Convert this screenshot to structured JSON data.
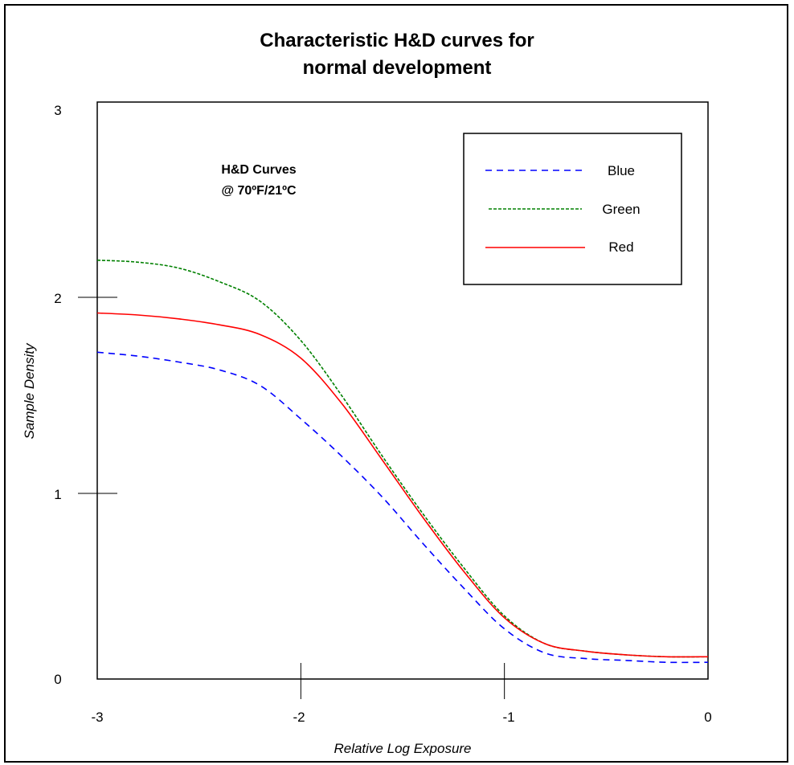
{
  "chart_data": {
    "type": "line",
    "title": [
      "Characteristic H&D curves for",
      "normal development"
    ],
    "xlabel": "Relative Log Exposure",
    "ylabel": "Sample Density",
    "xlim": [
      -3,
      0
    ],
    "ylim": [
      0,
      3
    ],
    "x_ticks": [
      "-3",
      "-2",
      "-1",
      "0"
    ],
    "y_ticks": [
      "0",
      "1",
      "2",
      "3"
    ],
    "annotation": [
      "H&D Curves",
      "@ 70ºF/21ºC"
    ],
    "legend_position": "top-right",
    "grid": false,
    "series": [
      {
        "name": "Blue",
        "color": "#0000ff",
        "dash": "dashed",
        "x": [
          -3.0,
          -2.8,
          -2.6,
          -2.4,
          -2.2,
          -2.0,
          -1.8,
          -1.6,
          -1.4,
          -1.2,
          -1.0,
          -0.8,
          -0.6,
          -0.4,
          -0.2,
          0.0
        ],
        "y": [
          1.72,
          1.7,
          1.67,
          1.63,
          1.55,
          1.38,
          1.19,
          0.98,
          0.73,
          0.49,
          0.27,
          0.14,
          0.11,
          0.1,
          0.09,
          0.09
        ]
      },
      {
        "name": "Green",
        "color": "#008000",
        "dash": "dotted",
        "x": [
          -3.0,
          -2.8,
          -2.6,
          -2.4,
          -2.2,
          -2.0,
          -1.8,
          -1.6,
          -1.4,
          -1.2,
          -1.0,
          -0.8,
          -0.6,
          -0.4,
          -0.2,
          0.0
        ],
        "y": [
          2.19,
          2.18,
          2.15,
          2.08,
          1.98,
          1.78,
          1.5,
          1.19,
          0.89,
          0.6,
          0.34,
          0.19,
          0.15,
          0.13,
          0.12,
          0.12
        ]
      },
      {
        "name": "Red",
        "color": "#ff0000",
        "dash": "solid",
        "x": [
          -3.0,
          -2.8,
          -2.6,
          -2.4,
          -2.2,
          -2.0,
          -1.8,
          -1.6,
          -1.4,
          -1.2,
          -1.0,
          -0.8,
          -0.6,
          -0.4,
          -0.2,
          0.0
        ],
        "y": [
          1.92,
          1.91,
          1.89,
          1.86,
          1.81,
          1.69,
          1.46,
          1.17,
          0.87,
          0.58,
          0.33,
          0.19,
          0.15,
          0.13,
          0.12,
          0.12
        ]
      }
    ]
  }
}
